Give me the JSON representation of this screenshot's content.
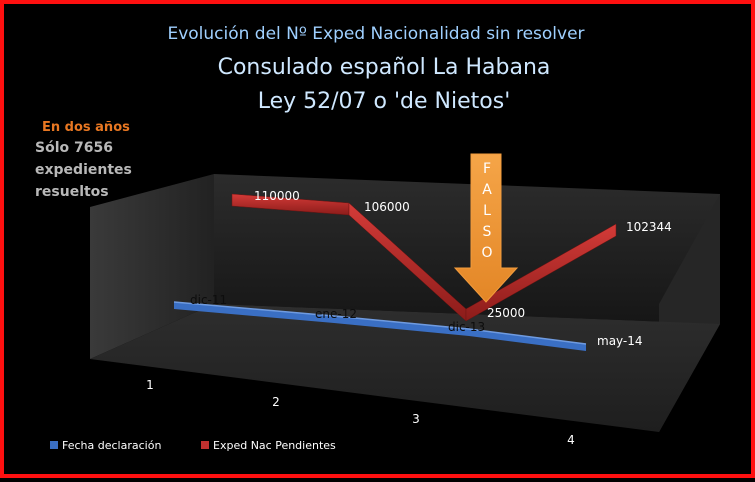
{
  "chart_data": {
    "type": "line",
    "title": "Evolución del Nº Exped Nacionalidad sin resolver",
    "subtitle_lines": [
      "Consulado español La Habana",
      "Ley 52/07 o 'de Nietos'"
    ],
    "categories": [
      "1",
      "2",
      "3",
      "4"
    ],
    "series": [
      {
        "name": "Fecha declaración",
        "labels": [
          "dic-11",
          "ene-12",
          "dic-13",
          "may-14"
        ],
        "color": "#3a6fc4"
      },
      {
        "name": "Exped Nac Pendientes",
        "values": [
          110000,
          106000,
          25000,
          102344
        ],
        "color": "#c0302f"
      }
    ],
    "ylim": [
      0,
      130000
    ],
    "grid": false,
    "legend_position": "bottom-left",
    "annotations": {
      "arrow_label": "FALSO",
      "arrow_color": "#f29b3c",
      "note_line1": "En dos años",
      "note_line2": [
        "Sólo 7656",
        "expedientes",
        "resueltos"
      ]
    }
  },
  "frame_color": "#ff1010"
}
